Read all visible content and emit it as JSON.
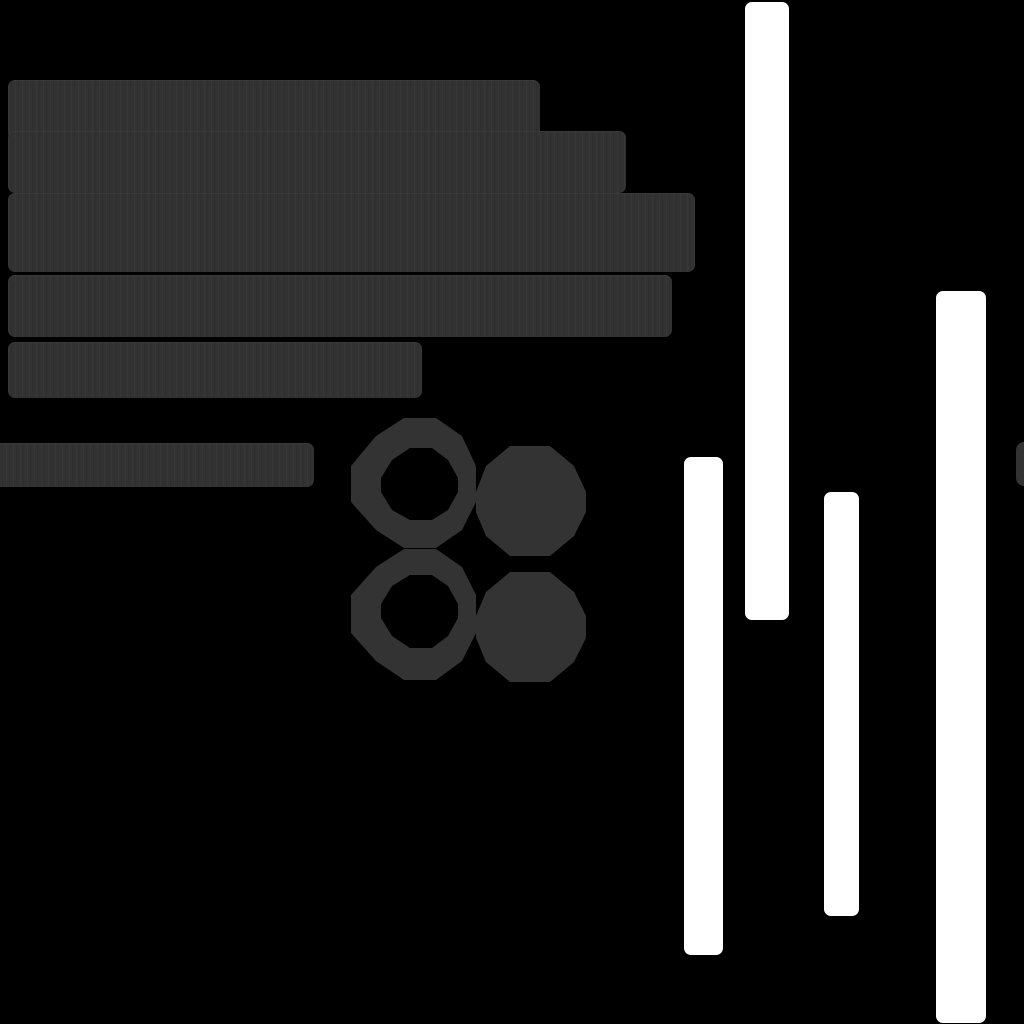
{
  "texture": {
    "background_color": "#000000",
    "panel_color": "#323232",
    "strip_color": "#ffffff"
  },
  "panels": {
    "bar_count": 6,
    "knob_count": 4,
    "strip_count": 4
  }
}
